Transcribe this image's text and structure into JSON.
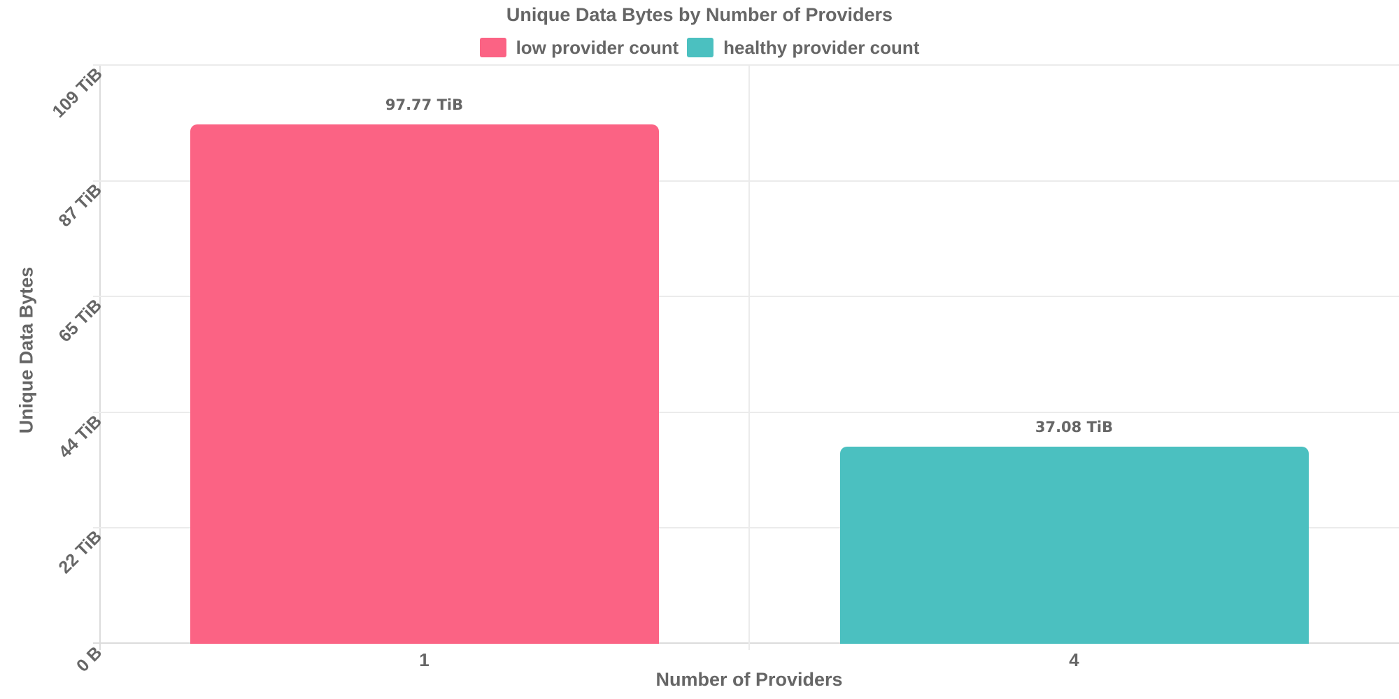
{
  "chart_data": {
    "type": "bar",
    "title": "Unique Data Bytes by Number of Providers",
    "xlabel": "Number of Providers",
    "ylabel": "Unique Data Bytes",
    "categories": [
      "1",
      "4"
    ],
    "bars": [
      {
        "category": "1",
        "series": "low provider count",
        "value_tib": 97.77,
        "label": "97.77 TiB",
        "color": "#fb6384"
      },
      {
        "category": "4",
        "series": "healthy provider count",
        "value_tib": 37.08,
        "label": "37.08 TiB",
        "color": "#4bc0c0"
      }
    ],
    "legend": {
      "position": "top",
      "entries": [
        {
          "label": "low provider count",
          "color": "#fb6384"
        },
        {
          "label": "healthy provider count",
          "color": "#4bc0c0"
        }
      ]
    },
    "y_axis": {
      "tick_labels": [
        "0 B",
        "22 TiB",
        "44 TiB",
        "65 TiB",
        "87 TiB",
        "109 TiB"
      ],
      "max_tib": 109,
      "ylim_tib": [
        0,
        109
      ],
      "grid": true
    },
    "x_axis": {
      "grid": true
    },
    "text_color": "#666666",
    "grid_color": "#ebebeb"
  }
}
